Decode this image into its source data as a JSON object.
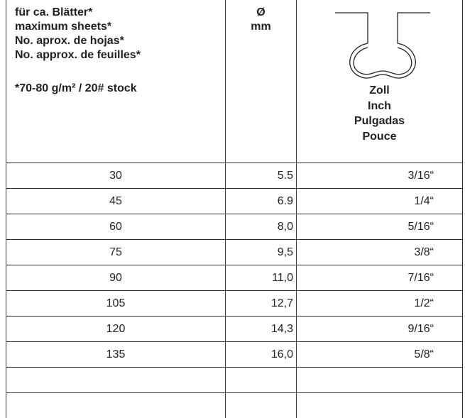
{
  "header": {
    "col1": [
      "für ca. Blätter*",
      "maximum sheets*",
      "No. aprox. de hojas*",
      "No. approx. de feuilles*"
    ],
    "note": "*70-80 g/m² / 20# stock",
    "col2": [
      "Ø",
      "mm"
    ],
    "col3": [
      "Zoll",
      "Inch",
      "Pulgadas",
      "Pouce"
    ]
  },
  "table": {
    "rows": [
      [
        "30",
        "5.5",
        "3/16“"
      ],
      [
        "45",
        "6.9",
        "1/4“"
      ],
      [
        "60",
        "8,0",
        "5/16“"
      ],
      [
        "75",
        "9,5",
        "3/8“"
      ],
      [
        "90",
        "11,0",
        "7/16“"
      ],
      [
        "105",
        "12,7",
        "1/2“"
      ],
      [
        "120",
        "14,3",
        "9/16“"
      ],
      [
        "135",
        "16,0",
        "5/8“"
      ]
    ]
  }
}
